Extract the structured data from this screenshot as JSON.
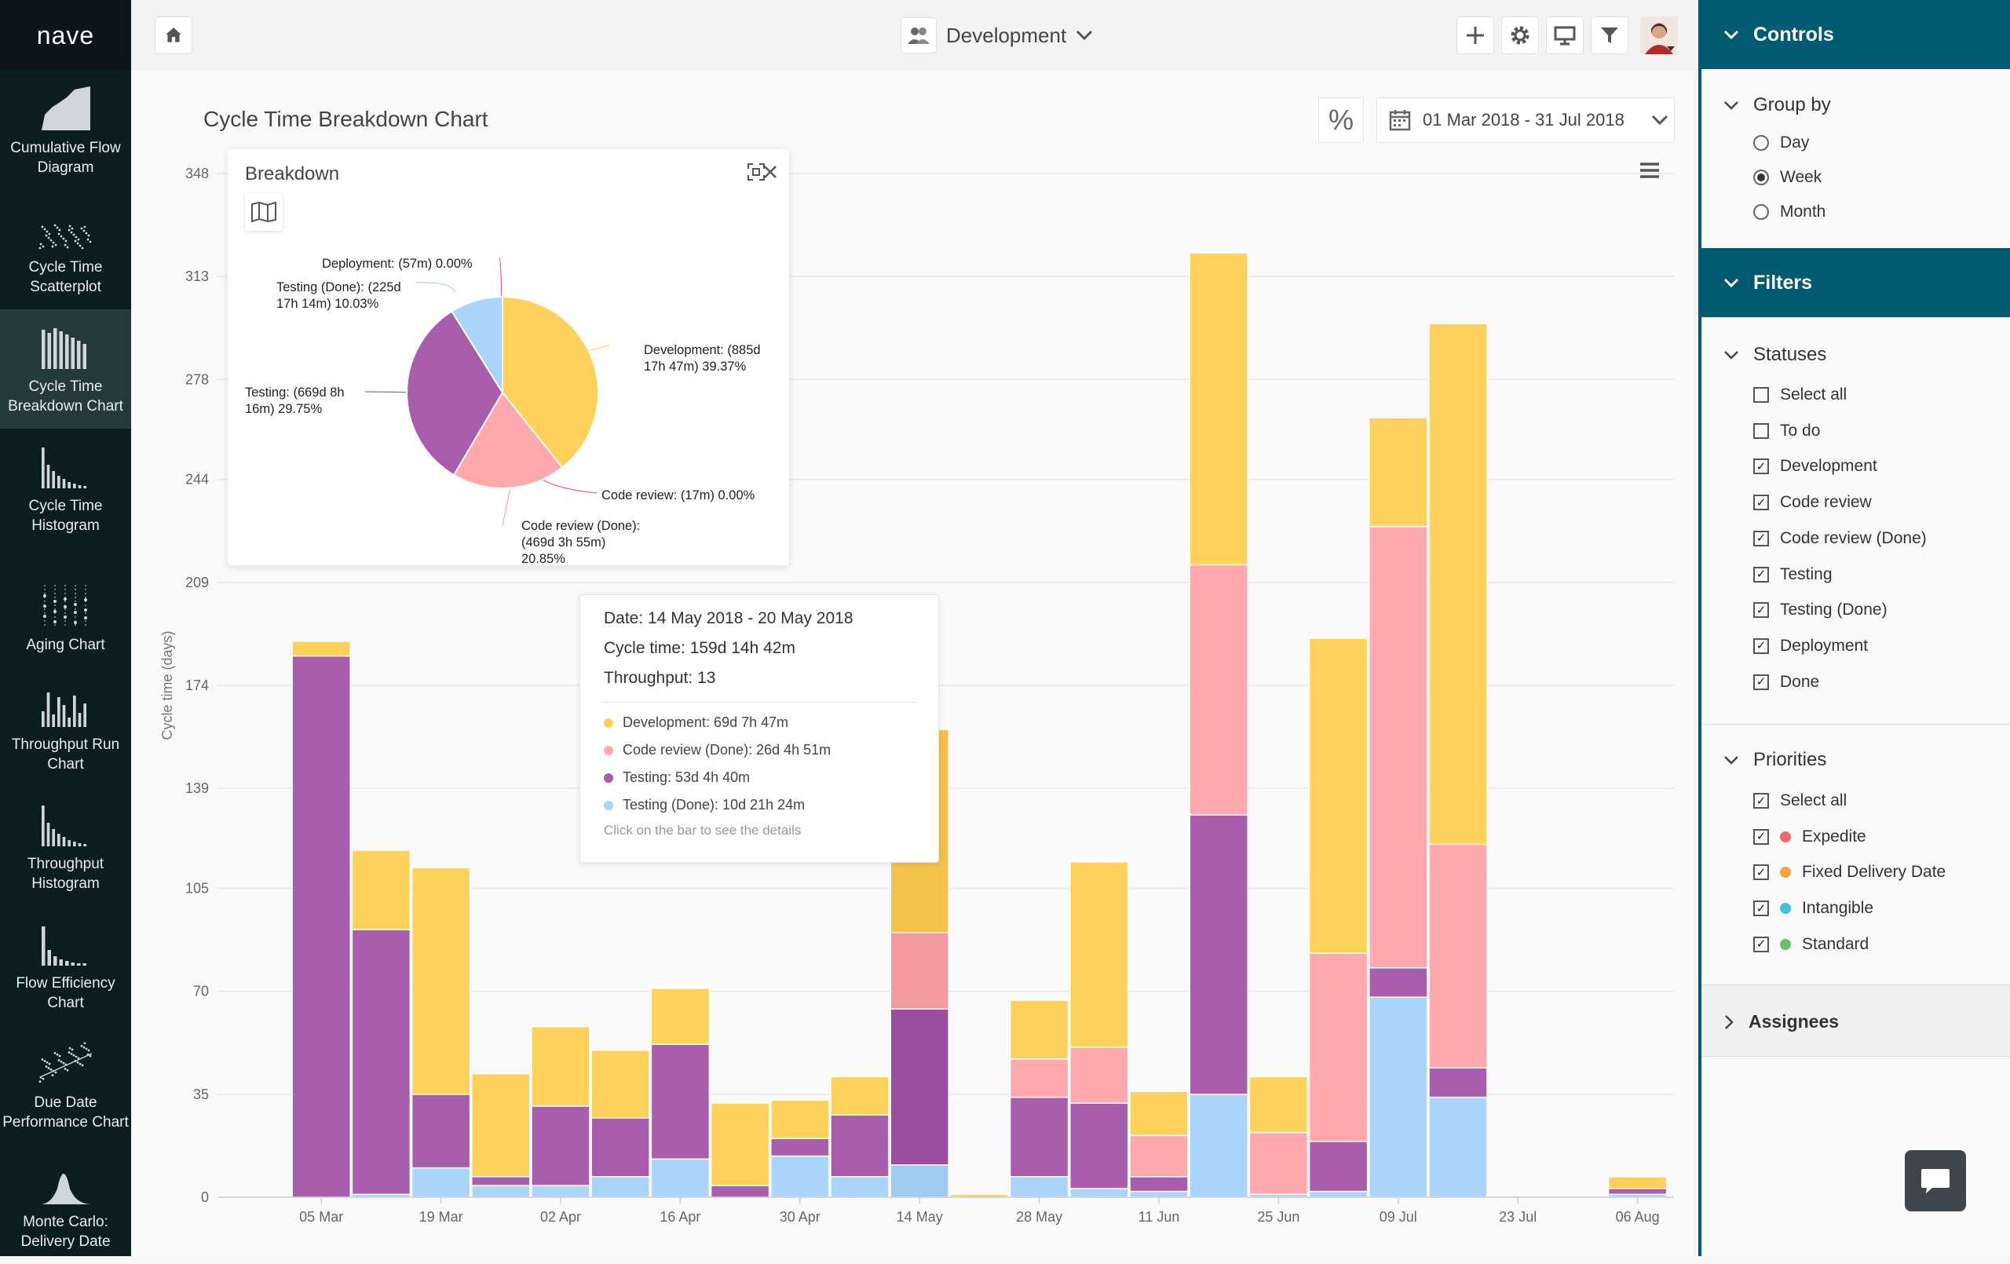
{
  "app": {
    "logo": "nave"
  },
  "nav": [
    {
      "label": "Cumulative Flow Diagram",
      "icon": "cfd-icon"
    },
    {
      "label": "Cycle Time Scatterplot",
      "icon": "scatter-icon"
    },
    {
      "label": "Cycle Time Breakdown Chart",
      "icon": "breakdown-icon",
      "active": true
    },
    {
      "label": "Cycle Time Histogram",
      "icon": "histogram-icon"
    },
    {
      "label": "Aging Chart",
      "icon": "aging-icon"
    },
    {
      "label": "Throughput Run Chart",
      "icon": "run-chart-icon"
    },
    {
      "label": "Throughput Histogram",
      "icon": "throughput-histogram-icon"
    },
    {
      "label": "Flow Efficiency Chart",
      "icon": "flow-efficiency-icon"
    },
    {
      "label": "Due Date Performance Chart",
      "icon": "due-date-icon"
    },
    {
      "label": "Monte Carlo: Delivery Date",
      "icon": "monte-carlo-icon"
    }
  ],
  "topbar": {
    "team": "Development"
  },
  "main": {
    "title": "Cycle Time Breakdown Chart",
    "percent_toggle": "%",
    "date_range": "01 Mar 2018 - 31 Jul 2018"
  },
  "breakdown": {
    "title": "Breakdown",
    "labels": {
      "deployment": "Deployment: (57m) 0.00%",
      "testing_done_1": "Testing (Done): (225d",
      "testing_done_2": "17h 14m) 10.03%",
      "development_1": "Development: (885d",
      "development_2": "17h 47m) 39.37%",
      "testing_1": "Testing: (669d 8h",
      "testing_2": "16m) 29.75%",
      "code_review": "Code review: (17m) 0.00%",
      "code_review_done_1": "Code review (Done):",
      "code_review_done_2": "(469d 3h 55m)",
      "code_review_done_3": "20.85%"
    }
  },
  "tooltip": {
    "date": "Date: 14 May 2018 - 20 May 2018",
    "cycle_time": "Cycle time: 159d 14h 42m",
    "throughput": "Throughput: 13",
    "items": [
      {
        "label": "Development: 69d 7h 47m",
        "color": "#fed25a"
      },
      {
        "label": "Code review (Done): 26d 4h 51m",
        "color": "#ffa8ad"
      },
      {
        "label": "Testing: 53d 4h 40m",
        "color": "#a95ead"
      },
      {
        "label": "Testing (Done): 10d 21h 24m",
        "color": "#a9d5fb"
      }
    ],
    "hint": "Click on the bar to see the details"
  },
  "chart_data": {
    "type": "bar",
    "stacked": true,
    "ylabel": "Cycle time (days)",
    "ylim": [
      0,
      348
    ],
    "y_ticks": [
      0,
      35,
      70,
      105,
      139,
      174,
      209,
      244,
      278,
      313,
      348
    ],
    "x_tick_labels": [
      "05 Mar",
      "19 Mar",
      "02 Apr",
      "16 Apr",
      "30 Apr",
      "14 May",
      "28 May",
      "11 Jun",
      "25 Jun",
      "09 Jul",
      "23 Jul",
      "06 Aug"
    ],
    "categories": [
      "26 Feb",
      "05 Mar",
      "12 Mar",
      "19 Mar",
      "26 Mar",
      "02 Apr",
      "09 Apr",
      "16 Apr",
      "23 Apr",
      "30 Apr",
      "07 May",
      "14 May",
      "21 May",
      "28 May",
      "04 Jun",
      "11 Jun",
      "18 Jun",
      "25 Jun",
      "02 Jul",
      "09 Jul",
      "16 Jul",
      "23 Jul",
      "30 Jul",
      "06 Aug"
    ],
    "series": [
      {
        "name": "Testing (Done)",
        "color": "#a9d5fb",
        "values": [
          0,
          0,
          1,
          10,
          4,
          4,
          7,
          13,
          0,
          14,
          7,
          11,
          0,
          7,
          3,
          2,
          35,
          1,
          2,
          68,
          34,
          0,
          0,
          1
        ]
      },
      {
        "name": "Testing",
        "color": "#a95ead",
        "values": [
          0,
          184,
          90,
          25,
          3,
          27,
          20,
          39,
          4,
          6,
          21,
          53,
          0,
          27,
          29,
          5,
          95,
          0,
          17,
          10,
          10,
          0,
          0,
          2
        ]
      },
      {
        "name": "Code review (Done)",
        "color": "#ffa8ad",
        "values": [
          0,
          0,
          0,
          0,
          0,
          0,
          0,
          0,
          0,
          0,
          0,
          26,
          0,
          13,
          19,
          14,
          85,
          21,
          64,
          150,
          76,
          0,
          0,
          0
        ]
      },
      {
        "name": "Development",
        "color": "#fed25a",
        "values": [
          0,
          5,
          27,
          77,
          35,
          27,
          23,
          19,
          28,
          13,
          13,
          69,
          1,
          20,
          63,
          15,
          106,
          19,
          107,
          37,
          177,
          0,
          0,
          4
        ]
      }
    ]
  },
  "controls": {
    "title": "Controls",
    "group_by_title": "Group by",
    "group_by_options": [
      {
        "label": "Day",
        "selected": false
      },
      {
        "label": "Week",
        "selected": true
      },
      {
        "label": "Month",
        "selected": false
      }
    ]
  },
  "filters": {
    "title": "Filters",
    "statuses_title": "Statuses",
    "statuses": [
      {
        "label": "Select all",
        "checked": false
      },
      {
        "label": "To do",
        "checked": false
      },
      {
        "label": "Development",
        "checked": true
      },
      {
        "label": "Code review",
        "checked": true
      },
      {
        "label": "Code review (Done)",
        "checked": true
      },
      {
        "label": "Testing",
        "checked": true
      },
      {
        "label": "Testing (Done)",
        "checked": true
      },
      {
        "label": "Deployment",
        "checked": true
      },
      {
        "label": "Done",
        "checked": true
      }
    ],
    "priorities_title": "Priorities",
    "priorities": [
      {
        "label": "Select all",
        "checked": true,
        "color": ""
      },
      {
        "label": "Expedite",
        "checked": true,
        "color": "#ef6b6b"
      },
      {
        "label": "Fixed Delivery Date",
        "checked": true,
        "color": "#f4a340"
      },
      {
        "label": "Intangible",
        "checked": true,
        "color": "#3fc1e6"
      },
      {
        "label": "Standard",
        "checked": true,
        "color": "#68c26a"
      }
    ],
    "assignees_title": "Assignees"
  }
}
